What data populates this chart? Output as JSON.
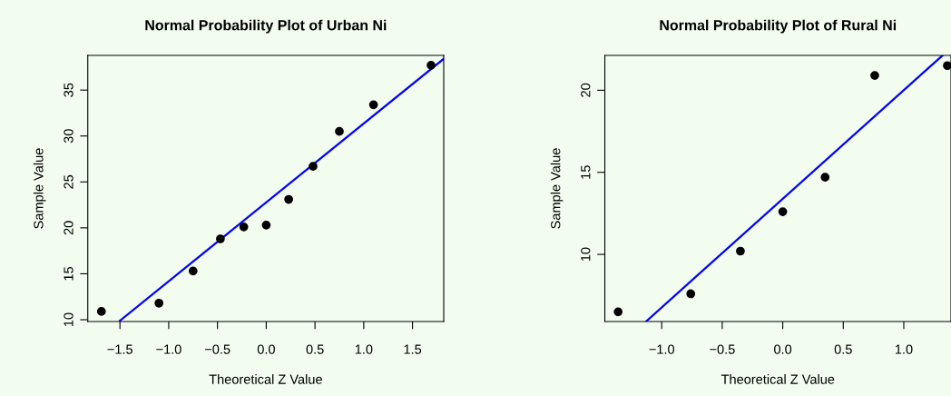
{
  "chart_data": [
    {
      "type": "scatter",
      "title": "Normal Probability Plot of Urban Ni",
      "xlabel": "Theoretical Z Value",
      "ylabel": "Sample Value",
      "x": [
        -1.69,
        -1.1,
        -0.75,
        -0.47,
        -0.23,
        0,
        0.23,
        0.48,
        0.75,
        1.1,
        1.69
      ],
      "series": [
        {
          "color": "#000000",
          "values": [
            10.9,
            11.8,
            15.3,
            18.8,
            20.1,
            20.3,
            23.1,
            26.7,
            30.5,
            33.4,
            37.7
          ]
        },
        {
          "type": "line",
          "marker": "none",
          "color": "#0000ff",
          "x": [
            -1.5,
            1.82
          ],
          "values": [
            9.9,
            38.4
          ]
        }
      ],
      "xlim": [
        -1.83,
        1.82
      ],
      "ylim": [
        9.8,
        38.77
      ],
      "xticks": [
        -1.5,
        {
          "value": -1,
          "label": "−1.0"
        },
        -0.5,
        {
          "value": 0,
          "label": "0.0"
        },
        0.5,
        {
          "value": 1,
          "label": "1.0"
        },
        1.5
      ],
      "yticks": [
        10,
        15,
        20,
        25,
        30,
        35
      ],
      "marker": "circle",
      "grid": false,
      "legend": false
    },
    {
      "type": "scatter",
      "title": "Normal Probability Plot of Rural Ni",
      "xlabel": "Theoretical Z Value",
      "ylabel": "Sample Value",
      "x": [
        -1.36,
        -0.76,
        -0.35,
        0,
        0.35,
        0.76,
        1.36
      ],
      "series": [
        {
          "color": "#000000",
          "values": [
            6.5,
            7.6,
            10.2,
            12.6,
            14.7,
            20.9,
            21.5
          ]
        },
        {
          "type": "line",
          "marker": "none",
          "color": "#0000ff",
          "x": [
            -1.13,
            1.32
          ],
          "values": [
            5.91,
            22.12
          ]
        }
      ],
      "xlim": [
        -1.47,
        1.39
      ],
      "ylim": [
        5.91,
        22.12
      ],
      "xticks": [
        {
          "value": -1,
          "label": "−1.0"
        },
        -0.5,
        {
          "value": 0,
          "label": "0.0"
        },
        0.5,
        {
          "value": 1,
          "label": "1.0"
        }
      ],
      "yticks": [
        10,
        15,
        20
      ],
      "marker": "circle",
      "grid": false,
      "legend": false
    }
  ]
}
